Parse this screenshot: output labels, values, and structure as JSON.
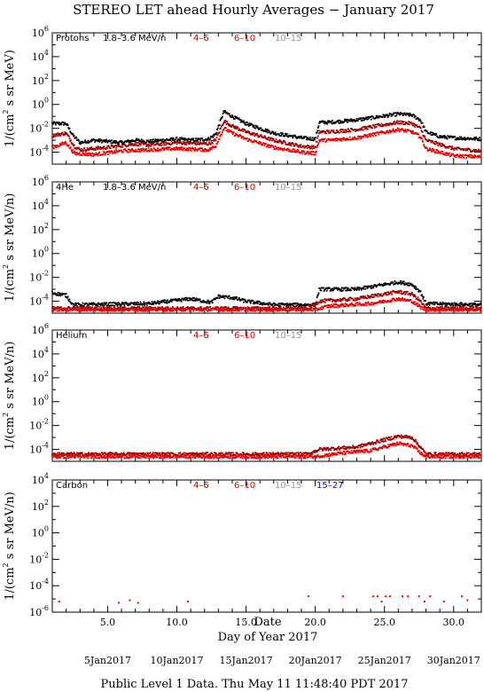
{
  "title": "STEREO LET ahead Hourly Averages − January 2017",
  "footer": "Public Level 1 Data. Thu May 11 11:48:40 PDT 2017",
  "xaxis": {
    "label_top": "Date",
    "label": "Day of Year 2017",
    "ticks": [
      "5.0",
      "10.0",
      "15.0",
      "20.0",
      "25.0",
      "30.0"
    ],
    "tick_values": [
      5,
      10,
      15,
      20,
      25,
      30
    ],
    "dates": [
      "5Jan2017",
      "10Jan2017",
      "15Jan2017",
      "20Jan2017",
      "25Jan2017",
      "30Jan2017"
    ],
    "date_values": [
      5,
      10,
      15,
      20,
      25,
      30
    ]
  },
  "colors": {
    "ch1": "#000000",
    "ch2": "#a00000",
    "ch3": "#ee0000",
    "ch4": "#909090",
    "ch5": "#0000ee"
  },
  "chart_data": [
    {
      "type": "scatter",
      "panel_label": "Protons",
      "ylabel_main": "1/(cm",
      "ylabel_sup": "2",
      "ylabel_rest": " s sr MeV)",
      "xlim": [
        1,
        32
      ],
      "ylim_log10": [
        -5,
        6
      ],
      "yticks": [
        {
          "b": "10",
          "e": "6",
          "v": 6
        },
        {
          "b": "10",
          "e": "4",
          "v": 4
        },
        {
          "b": "10",
          "e": "2",
          "v": 2
        },
        {
          "b": "10",
          "e": "0",
          "v": 0
        },
        {
          "b": "10",
          "e": "-2",
          "v": -2
        },
        {
          "b": "10",
          "e": "-4",
          "v": -4
        }
      ],
      "series": [
        {
          "name": "1.8–3.6 MeV/n",
          "color": "#000000",
          "anchors": [
            [
              1,
              -1.6
            ],
            [
              2,
              -1.6
            ],
            [
              2.5,
              -2.6
            ],
            [
              3,
              -3.2
            ],
            [
              4,
              -3.0
            ],
            [
              6,
              -3.2
            ],
            [
              7,
              -3.0
            ],
            [
              8,
              -3.1
            ],
            [
              10,
              -2.9
            ],
            [
              11,
              -3.0
            ],
            [
              12.3,
              -2.9
            ],
            [
              12.8,
              -2.5
            ],
            [
              13.4,
              -0.6
            ],
            [
              14,
              -1.0
            ],
            [
              15,
              -1.6
            ],
            [
              17,
              -2.4
            ],
            [
              19,
              -2.8
            ],
            [
              20,
              -2.9
            ],
            [
              20.3,
              -1.5
            ],
            [
              21,
              -1.5
            ],
            [
              23,
              -1.3
            ],
            [
              26,
              -0.8
            ],
            [
              27,
              -0.9
            ],
            [
              27.6,
              -1.3
            ],
            [
              28,
              -2.3
            ],
            [
              29,
              -2.7
            ],
            [
              30,
              -2.8
            ],
            [
              32,
              -2.9
            ]
          ]
        },
        {
          "name": "4–6",
          "color": "#a00000",
          "anchors": [
            [
              1,
              -2.6
            ],
            [
              2,
              -2.4
            ],
            [
              2.6,
              -3.5
            ],
            [
              3,
              -3.8
            ],
            [
              5,
              -3.6
            ],
            [
              7,
              -3.3
            ],
            [
              8,
              -3.4
            ],
            [
              10,
              -3.2
            ],
            [
              12.3,
              -3.3
            ],
            [
              12.8,
              -3.0
            ],
            [
              13.4,
              -1.4
            ],
            [
              14,
              -1.8
            ],
            [
              15,
              -2.3
            ],
            [
              17,
              -3.0
            ],
            [
              19,
              -3.5
            ],
            [
              20,
              -3.6
            ],
            [
              20.3,
              -2.3
            ],
            [
              21,
              -2.3
            ],
            [
              23,
              -2.1
            ],
            [
              26,
              -1.5
            ],
            [
              27,
              -1.6
            ],
            [
              27.6,
              -2.0
            ],
            [
              28,
              -3.0
            ],
            [
              30,
              -3.7
            ],
            [
              32,
              -3.9
            ]
          ]
        },
        {
          "name": "6–10",
          "color": "#ee0000",
          "anchors": [
            [
              1,
              -3.6
            ],
            [
              2,
              -3.2
            ],
            [
              2.6,
              -4.1
            ],
            [
              4,
              -4.2
            ],
            [
              6,
              -3.9
            ],
            [
              8,
              -3.8
            ],
            [
              10,
              -3.7
            ],
            [
              12.3,
              -3.8
            ],
            [
              12.8,
              -3.5
            ],
            [
              13.4,
              -2.0
            ],
            [
              14,
              -2.4
            ],
            [
              15,
              -2.9
            ],
            [
              17,
              -3.6
            ],
            [
              19,
              -4.0
            ],
            [
              20,
              -4.1
            ],
            [
              20.3,
              -3.0
            ],
            [
              21,
              -3.0
            ],
            [
              23,
              -2.8
            ],
            [
              26,
              -2.1
            ],
            [
              27,
              -2.3
            ],
            [
              27.6,
              -2.7
            ],
            [
              28,
              -3.7
            ],
            [
              30,
              -4.3
            ],
            [
              32,
              -4.4
            ]
          ]
        },
        {
          "name": "10–15",
          "color": "#909090",
          "anchors": []
        }
      ]
    },
    {
      "type": "scatter",
      "panel_label": "4He",
      "ylabel_main": "1/(cm",
      "ylabel_sup": "2",
      "ylabel_rest": " s sr MeV/n)",
      "xlim": [
        1,
        32
      ],
      "ylim_log10": [
        -5,
        6
      ],
      "yticks": [
        {
          "b": "10",
          "e": "6",
          "v": 6
        },
        {
          "b": "10",
          "e": "4",
          "v": 4
        },
        {
          "b": "10",
          "e": "2",
          "v": 2
        },
        {
          "b": "10",
          "e": "0",
          "v": 0
        },
        {
          "b": "10",
          "e": "-2",
          "v": -2
        },
        {
          "b": "10",
          "e": "-4",
          "v": -4
        }
      ],
      "series": [
        {
          "name": "1.8–3.6 MeV/n",
          "color": "#000000",
          "anchors": [
            [
              1,
              -3.3
            ],
            [
              2,
              -3.5
            ],
            [
              2.5,
              -4.3
            ],
            [
              8,
              -4.2
            ],
            [
              11,
              -3.8
            ],
            [
              12.5,
              -4.1
            ],
            [
              13,
              -3.6
            ],
            [
              14,
              -3.7
            ],
            [
              15,
              -4.0
            ],
            [
              17,
              -4.3
            ],
            [
              20,
              -4.3
            ],
            [
              20.3,
              -3.0
            ],
            [
              23,
              -3.0
            ],
            [
              26,
              -2.4
            ],
            [
              27,
              -2.6
            ],
            [
              27.6,
              -3.2
            ],
            [
              28,
              -4.2
            ],
            [
              32,
              -4.3
            ]
          ]
        },
        {
          "name": "4–6",
          "color": "#a00000",
          "anchors": [
            [
              1,
              -4.6
            ],
            [
              19.5,
              -4.6
            ],
            [
              20.3,
              -4.0
            ],
            [
              23,
              -3.8
            ],
            [
              26,
              -3.2
            ],
            [
              27,
              -3.4
            ],
            [
              27.6,
              -4.0
            ],
            [
              28,
              -4.6
            ],
            [
              32,
              -4.6
            ]
          ]
        },
        {
          "name": "6–10",
          "color": "#ee0000",
          "anchors": [
            [
              1,
              -4.7
            ],
            [
              20,
              -4.7
            ],
            [
              21,
              -4.4
            ],
            [
              24,
              -4.2
            ],
            [
              26,
              -3.8
            ],
            [
              27,
              -4.0
            ],
            [
              27.6,
              -4.5
            ],
            [
              28,
              -4.7
            ],
            [
              32,
              -4.7
            ]
          ]
        },
        {
          "name": "10–15",
          "color": "#909090",
          "anchors": []
        }
      ]
    },
    {
      "type": "scatter",
      "panel_label": "Helium",
      "ylabel_main": "1/(cm",
      "ylabel_sup": "2",
      "ylabel_rest": " s sr MeV/n)",
      "xlim": [
        1,
        32
      ],
      "ylim_log10": [
        -5,
        6
      ],
      "yticks": [
        {
          "b": "10",
          "e": "6",
          "v": 6
        },
        {
          "b": "10",
          "e": "4",
          "v": 4
        },
        {
          "b": "10",
          "e": "2",
          "v": 2
        },
        {
          "b": "10",
          "e": "0",
          "v": 0
        },
        {
          "b": "10",
          "e": "-2",
          "v": -2
        },
        {
          "b": "10",
          "e": "-4",
          "v": -4
        }
      ],
      "series": [
        {
          "name": "4–6",
          "color": "#a00000",
          "anchors": [
            [
              1,
              -4.4
            ],
            [
              19.5,
              -4.4
            ],
            [
              20.3,
              -4.0
            ],
            [
              23,
              -3.8
            ],
            [
              26,
              -2.9
            ],
            [
              27,
              -3.0
            ],
            [
              27.6,
              -3.8
            ],
            [
              28,
              -4.4
            ],
            [
              32,
              -4.4
            ]
          ]
        },
        {
          "name": "6–10",
          "color": "#ee0000",
          "anchors": [
            [
              1,
              -4.6
            ],
            [
              20,
              -4.6
            ],
            [
              22,
              -4.3
            ],
            [
              24,
              -4.1
            ],
            [
              26,
              -3.5
            ],
            [
              27,
              -3.7
            ],
            [
              27.6,
              -4.3
            ],
            [
              28,
              -4.6
            ],
            [
              32,
              -4.6
            ]
          ]
        },
        {
          "name": "10–15",
          "color": "#909090",
          "anchors": []
        }
      ]
    },
    {
      "type": "scatter",
      "panel_label": "Carbon",
      "ylabel_main": "1/(cm",
      "ylabel_sup": "2",
      "ylabel_rest": " s sr MeV/n)",
      "xlim": [
        1,
        32
      ],
      "ylim_log10": [
        -6,
        4
      ],
      "yticks": [
        {
          "b": "10",
          "e": "4",
          "v": 4
        },
        {
          "b": "10",
          "e": "2",
          "v": 2
        },
        {
          "b": "10",
          "e": "0",
          "v": 0
        },
        {
          "b": "10",
          "e": "-2",
          "v": -2
        },
        {
          "b": "10",
          "e": "-4",
          "v": -4
        },
        {
          "b": "10",
          "e": "-6",
          "v": -6
        }
      ],
      "series": [
        {
          "name": "4–6",
          "color": "#a00000",
          "anchors": []
        },
        {
          "name": "6–10",
          "color": "#ee0000",
          "points": [
            [
              1.5,
              -5.2
            ],
            [
              5.8,
              -5.3
            ],
            [
              6.6,
              -5.1
            ],
            [
              7.2,
              -5.3
            ],
            [
              10.8,
              -5.2
            ],
            [
              19.5,
              -4.8
            ],
            [
              22,
              -4.8
            ],
            [
              24.2,
              -4.8
            ],
            [
              24.5,
              -4.8
            ],
            [
              24.8,
              -5.2
            ],
            [
              25.1,
              -4.8
            ],
            [
              25.4,
              -4.8
            ],
            [
              26.3,
              -4.8
            ],
            [
              26.7,
              -4.8
            ],
            [
              27.5,
              -4.8
            ],
            [
              27.9,
              -5.2
            ],
            [
              28.3,
              -4.8
            ],
            [
              29.3,
              -5.2
            ],
            [
              30.6,
              -4.8
            ],
            [
              31.0,
              -5.1
            ]
          ]
        },
        {
          "name": "10–15",
          "color": "#909090",
          "anchors": []
        },
        {
          "name": "15–27",
          "color": "#0000ee",
          "anchors": []
        }
      ]
    }
  ]
}
